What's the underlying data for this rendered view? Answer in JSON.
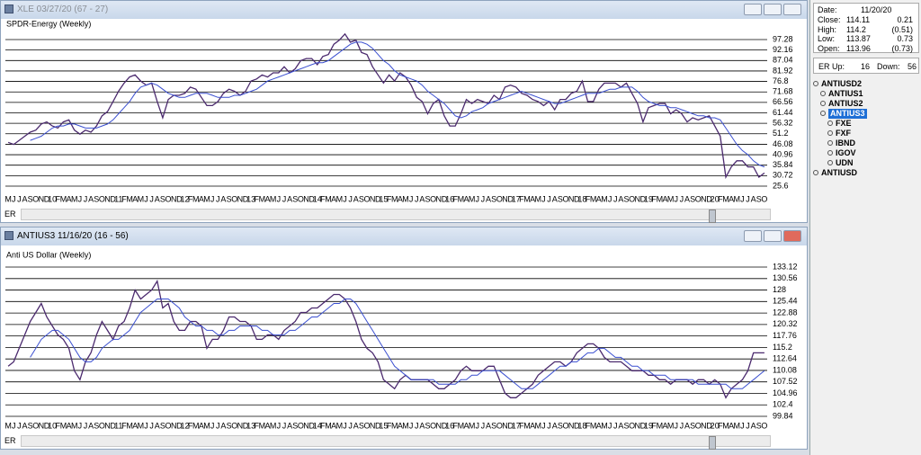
{
  "windows": [
    {
      "title": "XLE 03/27/20 (67 - 27)",
      "active": false,
      "scrollbar_label": "ER",
      "chart": {
        "type": "line",
        "subtitle": "SPDR-Energy (Weekly)",
        "categories": [
          "M",
          "J",
          "J",
          "A",
          "S",
          "O",
          "N",
          "D",
          "10",
          "F",
          "M",
          "A",
          "M",
          "J",
          "J",
          "A",
          "S",
          "O",
          "N",
          "D",
          "11",
          "F",
          "M",
          "A",
          "M",
          "J",
          "J",
          "A",
          "S",
          "O",
          "N",
          "D",
          "12",
          "F",
          "M",
          "A",
          "M",
          "J",
          "J",
          "A",
          "S",
          "O",
          "N",
          "D",
          "13",
          "F",
          "M",
          "A",
          "M",
          "J",
          "J",
          "A",
          "S",
          "O",
          "N",
          "D",
          "14",
          "F",
          "M",
          "A",
          "M",
          "J",
          "J",
          "A",
          "S",
          "O",
          "N",
          "D",
          "15",
          "F",
          "M",
          "A",
          "M",
          "J",
          "J",
          "A",
          "S",
          "O",
          "N",
          "D",
          "16",
          "F",
          "M",
          "A",
          "M",
          "J",
          "J",
          "A",
          "S",
          "O",
          "N",
          "D",
          "17",
          "F",
          "M",
          "A",
          "M",
          "J",
          "J",
          "A",
          "S",
          "O",
          "N",
          "D",
          "18",
          "F",
          "M",
          "A",
          "M",
          "J",
          "J",
          "A",
          "S",
          "O",
          "N",
          "D",
          "19",
          "F",
          "M",
          "A",
          "M",
          "J",
          "J",
          "A",
          "S",
          "O",
          "N",
          "D",
          "20",
          "F",
          "M",
          "A",
          "M",
          "J",
          "J",
          "A",
          "S",
          "O"
        ],
        "series": [
          {
            "color": "#4b2a6e",
            "values": [
              47,
              46,
              48,
              50,
              52,
              53,
              56,
              57,
              55,
              54,
              57,
              58,
              53,
              51,
              53,
              52,
              55,
              60,
              62,
              67,
              72,
              76,
              79,
              80,
              77,
              75,
              76,
              67,
              59,
              68,
              70,
              70,
              71,
              74,
              73,
              69,
              65,
              65,
              67,
              71,
              73,
              72,
              70,
              72,
              77,
              78,
              80,
              79,
              81,
              81,
              84,
              81,
              83,
              87,
              88,
              88,
              85,
              89,
              90,
              95,
              97,
              100,
              96,
              97,
              91,
              90,
              84,
              80,
              76,
              80,
              77,
              81,
              79,
              75,
              69,
              67,
              61,
              66,
              68,
              60,
              55,
              55,
              61,
              68,
              66,
              68,
              67,
              66,
              70,
              68,
              74,
              75,
              74,
              71,
              70,
              68,
              67,
              65,
              67,
              63,
              68,
              68,
              71,
              72,
              77,
              67,
              67,
              73,
              76,
              76,
              76,
              74,
              76,
              71,
              66,
              57,
              64,
              65,
              66,
              66,
              61,
              63,
              61,
              57,
              59,
              58,
              59,
              60,
              55,
              50,
              30,
              35,
              38,
              38,
              35,
              35,
              30,
              32
            ]
          },
          {
            "color": "#3a4fd0",
            "values": [
              null,
              null,
              null,
              null,
              48,
              49,
              50,
              52,
              54,
              55,
              55,
              56,
              56,
              55,
              54,
              54,
              54,
              55,
              56,
              58,
              61,
              64,
              67,
              71,
              74,
              75,
              76,
              75,
              73,
              71,
              70,
              69,
              69,
              70,
              71,
              71,
              71,
              70,
              69,
              69,
              69,
              70,
              70,
              71,
              72,
              73,
              75,
              77,
              78,
              79,
              80,
              81,
              82,
              83,
              84,
              85,
              86,
              86,
              87,
              89,
              91,
              93,
              95,
              96,
              96,
              95,
              93,
              90,
              87,
              85,
              82,
              80,
              79,
              78,
              77,
              75,
              72,
              70,
              68,
              66,
              63,
              60,
              59,
              60,
              62,
              63,
              64,
              66,
              67,
              68,
              69,
              70,
              71,
              72,
              71,
              70,
              69,
              68,
              67,
              66,
              66,
              67,
              68,
              69,
              70,
              71,
              71,
              71,
              72,
              73,
              73,
              74,
              74,
              74,
              72,
              69,
              67,
              66,
              65,
              65,
              64,
              64,
              63,
              62,
              61,
              60,
              60,
              59,
              59,
              58,
              54,
              50,
              46,
              43,
              41,
              38,
              36,
              35
            ]
          }
        ],
        "ylim": [
          22.96,
          101.24
        ],
        "yticks": [
          97.28,
          92.16,
          87.04,
          81.92,
          76.8,
          71.68,
          66.56,
          61.44,
          56.32,
          51.2,
          46.08,
          40.96,
          35.84,
          30.72,
          25.6
        ],
        "grid": true
      }
    },
    {
      "title": "ANTIUS3 11/16/20 (16 - 56)",
      "active": true,
      "scrollbar_label": "ER",
      "chart": {
        "type": "line",
        "subtitle": "Anti US Dollar (Weekly)",
        "categories": [
          "M",
          "J",
          "J",
          "A",
          "S",
          "O",
          "N",
          "D",
          "10",
          "F",
          "M",
          "A",
          "M",
          "J",
          "J",
          "A",
          "S",
          "O",
          "N",
          "D",
          "11",
          "F",
          "M",
          "A",
          "M",
          "J",
          "J",
          "A",
          "S",
          "O",
          "N",
          "D",
          "12",
          "F",
          "M",
          "A",
          "M",
          "J",
          "J",
          "A",
          "S",
          "O",
          "N",
          "D",
          "13",
          "F",
          "M",
          "A",
          "M",
          "J",
          "J",
          "A",
          "S",
          "O",
          "N",
          "D",
          "14",
          "F",
          "M",
          "A",
          "M",
          "J",
          "J",
          "A",
          "S",
          "O",
          "N",
          "D",
          "15",
          "F",
          "M",
          "A",
          "M",
          "J",
          "J",
          "A",
          "S",
          "O",
          "N",
          "D",
          "16",
          "F",
          "M",
          "A",
          "M",
          "J",
          "J",
          "A",
          "S",
          "O",
          "N",
          "D",
          "17",
          "F",
          "M",
          "A",
          "M",
          "J",
          "J",
          "A",
          "S",
          "O",
          "N",
          "D",
          "18",
          "F",
          "M",
          "A",
          "M",
          "J",
          "J",
          "A",
          "S",
          "O",
          "N",
          "D",
          "19",
          "F",
          "M",
          "A",
          "M",
          "J",
          "J",
          "A",
          "S",
          "O",
          "N",
          "D",
          "20",
          "F",
          "M",
          "A",
          "M",
          "J",
          "J",
          "A",
          "S",
          "O"
        ],
        "series": [
          {
            "color": "#4b2a6e",
            "values": [
              111,
              112,
              115,
              118,
              121,
              123,
              125,
              122,
              120,
              118,
              117,
              115,
              110,
              108,
              112,
              114,
              118,
              121,
              119,
              117,
              120,
              121,
              124,
              128,
              126,
              127,
              128,
              130,
              124,
              125,
              121,
              119,
              119,
              121,
              121,
              120,
              115,
              117,
              117,
              119,
              122,
              122,
              121,
              121,
              120,
              117,
              117,
              118,
              118,
              117,
              119,
              120,
              121,
              123,
              123,
              124,
              124,
              125,
              126,
              127,
              127,
              126,
              124,
              121,
              117,
              115,
              114,
              112,
              108,
              107,
              106,
              108,
              109,
              108,
              108,
              108,
              108,
              107,
              106,
              106,
              107,
              108,
              110,
              111,
              110,
              110,
              110,
              111,
              111,
              108,
              105,
              104,
              104,
              105,
              106,
              107,
              109,
              110,
              111,
              112,
              112,
              111,
              112,
              114,
              115,
              116,
              116,
              115,
              113,
              112,
              112,
              112,
              111,
              110,
              110,
              110,
              109,
              109,
              108,
              108,
              107,
              108,
              108,
              108,
              107,
              108,
              108,
              107,
              108,
              107,
              104,
              106,
              107,
              108,
              110,
              114,
              114,
              114
            ]
          },
          {
            "color": "#3a4fd0",
            "values": [
              null,
              null,
              null,
              null,
              113,
              115,
              117,
              118,
              119,
              119,
              118,
              117,
              115,
              113,
              112,
              112,
              113,
              115,
              116,
              117,
              117,
              118,
              119,
              121,
              123,
              124,
              125,
              126,
              126,
              126,
              125,
              124,
              122,
              121,
              120,
              120,
              119,
              119,
              118,
              118,
              119,
              119,
              120,
              120,
              120,
              120,
              119,
              119,
              118,
              118,
              118,
              119,
              119,
              120,
              121,
              122,
              122,
              123,
              124,
              125,
              125,
              126,
              126,
              125,
              123,
              121,
              119,
              117,
              115,
              113,
              111,
              110,
              109,
              108,
              108,
              108,
              108,
              108,
              107,
              107,
              107,
              107,
              108,
              108,
              109,
              109,
              110,
              110,
              110,
              110,
              109,
              108,
              107,
              106,
              106,
              106,
              107,
              108,
              109,
              110,
              111,
              111,
              112,
              112,
              113,
              114,
              114,
              115,
              115,
              114,
              113,
              113,
              112,
              111,
              111,
              110,
              110,
              109,
              109,
              109,
              108,
              108,
              108,
              108,
              108,
              107,
              107,
              107,
              107,
              107,
              107,
              106,
              106,
              106,
              107,
              108,
              109,
              110
            ]
          }
        ],
        "ylim": [
          99.04,
          135.13
        ],
        "yticks": [
          133.12,
          130.56,
          128,
          125.44,
          122.88,
          120.32,
          117.76,
          115.2,
          112.64,
          110.08,
          107.52,
          104.96,
          102.4,
          99.84
        ],
        "grid": true
      }
    }
  ],
  "info": {
    "date": {
      "label": "Date:",
      "value": "11/20/20"
    },
    "rows": [
      {
        "label": "Close:",
        "value": "114.11",
        "change": "0.21"
      },
      {
        "label": "High:",
        "value": "114.2",
        "change": "(0.51)"
      },
      {
        "label": "Low:",
        "value": "113.87",
        "change": "0.73"
      },
      {
        "label": "Open:",
        "value": "113.96",
        "change": "(0.73)"
      }
    ]
  },
  "er": {
    "up_label": "ER Up:",
    "up": "16",
    "down_label": "Down:",
    "down": "56"
  },
  "tree": [
    {
      "label": "ANTIUSD2",
      "level": 0,
      "selected": false
    },
    {
      "label": "ANTIUS1",
      "level": 1,
      "selected": false
    },
    {
      "label": "ANTIUS2",
      "level": 1,
      "selected": false
    },
    {
      "label": "ANTIUS3",
      "level": 1,
      "selected": true
    },
    {
      "label": "FXE",
      "level": 2,
      "selected": false
    },
    {
      "label": "FXF",
      "level": 2,
      "selected": false
    },
    {
      "label": "IBND",
      "level": 2,
      "selected": false
    },
    {
      "label": "IGOV",
      "level": 2,
      "selected": false
    },
    {
      "label": "UDN",
      "level": 2,
      "selected": false
    },
    {
      "label": "ANTIUSD",
      "level": 0,
      "selected": false
    }
  ]
}
